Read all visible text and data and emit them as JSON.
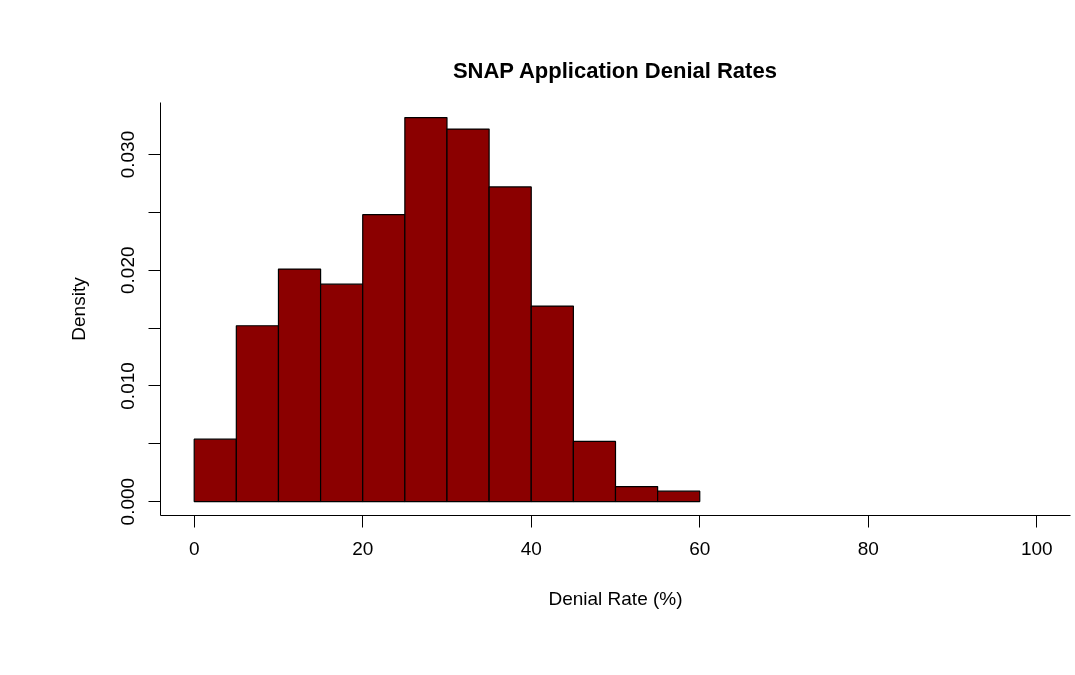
{
  "chart_data": {
    "type": "histogram",
    "title": "SNAP Application Denial Rates",
    "xlabel": "Denial Rate (%)",
    "ylabel": "Density",
    "bins": [
      0,
      5,
      10,
      15,
      20,
      25,
      30,
      35,
      40,
      45,
      50,
      55,
      60
    ],
    "values": [
      0.0054,
      0.0152,
      0.0201,
      0.0188,
      0.0248,
      0.0332,
      0.0322,
      0.0272,
      0.0169,
      0.0052,
      0.0013,
      0.0009
    ],
    "color": "#8b0000",
    "xlim": [
      -4,
      104
    ],
    "ylim": [
      -0.0012,
      0.0345
    ],
    "xticks": [
      0,
      20,
      40,
      60,
      80,
      100
    ],
    "yticks": [
      {
        "value": 0,
        "label": "0.000"
      },
      {
        "value": 0.005,
        "label": null
      },
      {
        "value": 0.01,
        "label": "0.010"
      },
      {
        "value": 0.015,
        "label": null
      },
      {
        "value": 0.02,
        "label": "0.020"
      },
      {
        "value": 0.025,
        "label": null
      },
      {
        "value": 0.03,
        "label": "0.030"
      }
    ],
    "grid": false
  }
}
